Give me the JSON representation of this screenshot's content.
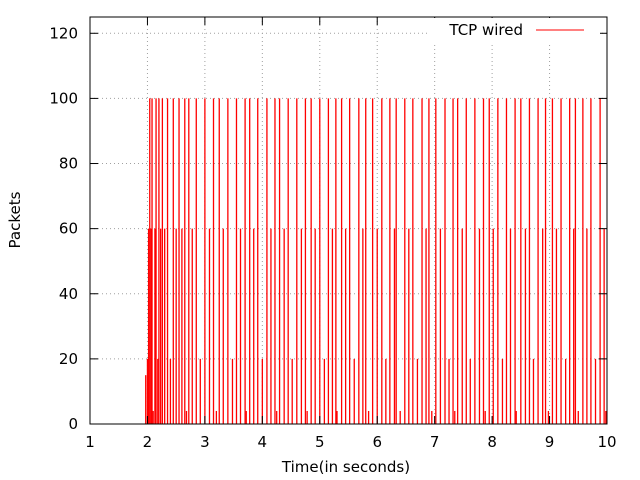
{
  "chart_data": {
    "type": "line",
    "title": "",
    "xlabel": "Time(in seconds)",
    "ylabel": "Packets",
    "xlim": [
      1,
      10
    ],
    "ylim": [
      0,
      125
    ],
    "xticks": [
      1,
      2,
      3,
      4,
      5,
      6,
      7,
      8,
      9,
      10
    ],
    "yticks": [
      0,
      20,
      40,
      60,
      80,
      100,
      120
    ],
    "xtick_labels": [
      "1",
      "2",
      "3",
      "4",
      "5",
      "6",
      "7",
      "8",
      "9",
      "10"
    ],
    "ytick_labels": [
      "0",
      "20",
      "40",
      "60",
      "80",
      "100",
      "120"
    ],
    "grid": true,
    "legend_position": "top-right",
    "series": [
      {
        "name": "TCP wired",
        "color": "#ff0000",
        "style": "impulses",
        "x": [
          1.95,
          1.97,
          2.0,
          2.02,
          2.04,
          2.06,
          2.08,
          2.1,
          2.13,
          2.15,
          2.18,
          2.2,
          2.23,
          2.26,
          2.3,
          2.35,
          2.4,
          2.45,
          2.5,
          2.55,
          2.6,
          2.65,
          2.68,
          2.72,
          2.78,
          2.85,
          2.92,
          3.0,
          3.08,
          3.15,
          3.2,
          3.25,
          3.32,
          3.4,
          3.48,
          3.55,
          3.62,
          3.7,
          3.72,
          3.78,
          3.85,
          3.92,
          4.0,
          4.08,
          4.15,
          4.22,
          4.25,
          4.3,
          4.38,
          4.45,
          4.52,
          4.6,
          4.68,
          4.75,
          4.78,
          4.85,
          4.92,
          5.0,
          5.08,
          5.15,
          5.22,
          5.28,
          5.3,
          5.38,
          5.45,
          5.52,
          5.6,
          5.68,
          5.75,
          5.8,
          5.85,
          5.92,
          6.0,
          6.08,
          6.15,
          6.22,
          6.3,
          6.33,
          6.4,
          6.48,
          6.55,
          6.62,
          6.7,
          6.78,
          6.85,
          6.9,
          6.95,
          7.02,
          7.1,
          7.18,
          7.25,
          7.32,
          7.35,
          7.4,
          7.48,
          7.55,
          7.62,
          7.7,
          7.78,
          7.85,
          7.88,
          7.95,
          8.02,
          8.1,
          8.18,
          8.25,
          8.32,
          8.4,
          8.42,
          8.5,
          8.58,
          8.65,
          8.72,
          8.8,
          8.88,
          8.93,
          8.98,
          9.05,
          9.12,
          9.2,
          9.28,
          9.35,
          9.42,
          9.45,
          9.5,
          9.58,
          9.65,
          9.72,
          9.8,
          9.88,
          9.95,
          9.98
        ],
        "y": [
          0,
          15,
          20,
          60,
          100,
          60,
          100,
          4,
          60,
          100,
          20,
          100,
          60,
          100,
          60,
          100,
          20,
          100,
          60,
          100,
          60,
          100,
          4,
          100,
          60,
          100,
          20,
          100,
          60,
          100,
          4,
          100,
          60,
          100,
          20,
          100,
          60,
          100,
          4,
          100,
          60,
          100,
          20,
          100,
          60,
          100,
          4,
          100,
          60,
          100,
          20,
          100,
          60,
          100,
          4,
          100,
          60,
          100,
          20,
          100,
          60,
          100,
          4,
          100,
          60,
          100,
          20,
          100,
          60,
          100,
          4,
          100,
          60,
          100,
          20,
          100,
          60,
          100,
          4,
          100,
          60,
          100,
          20,
          100,
          60,
          100,
          4,
          100,
          60,
          100,
          20,
          100,
          4,
          100,
          60,
          100,
          20,
          100,
          60,
          100,
          4,
          100,
          60,
          100,
          20,
          100,
          60,
          100,
          4,
          100,
          60,
          100,
          20,
          100,
          60,
          100,
          4,
          100,
          60,
          100,
          20,
          100,
          60,
          100,
          4,
          100,
          60,
          100,
          20,
          100,
          60,
          4
        ]
      }
    ]
  }
}
